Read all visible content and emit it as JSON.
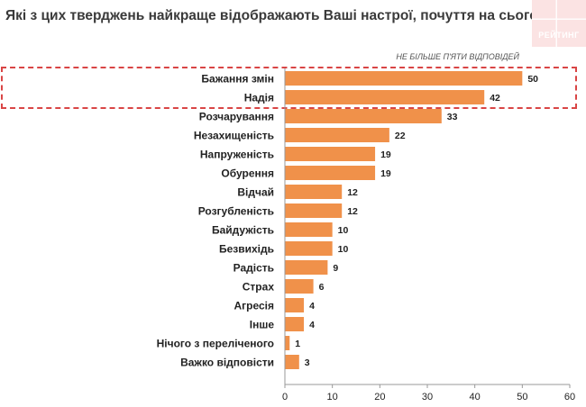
{
  "header": {
    "title": "Які з цих тверджень найкраще відображають Ваші настрої, почуття на сьогодні?",
    "logo_text": "РЕЙТИНГ",
    "note": "НЕ БІЛЬШЕ П'ЯТИ ВІДПОВІДЕЙ"
  },
  "colors": {
    "bar": "#f0914a",
    "highlight_border": "#d94545",
    "axis": "#999999",
    "text": "#222222"
  },
  "chart_data": {
    "type": "bar",
    "orientation": "horizontal",
    "categories": [
      "Бажання змін",
      "Надія",
      "Розчарування",
      "Незахищеність",
      "Напруженість",
      "Обурення",
      "Відчай",
      "Розгубленість",
      "Байдужість",
      "Безвихідь",
      "Радість",
      "Страх",
      "Агресія",
      "Інше",
      "Нічого з переліченого",
      "Важко відповісти"
    ],
    "values": [
      50,
      42,
      33,
      22,
      19,
      19,
      12,
      12,
      10,
      10,
      9,
      6,
      4,
      4,
      1,
      3
    ],
    "xlim": [
      0,
      60
    ],
    "xticks": [
      0,
      10,
      20,
      30,
      40,
      50,
      60
    ],
    "highlighted_categories": [
      "Бажання змін",
      "Надія"
    ],
    "grid": false,
    "legend": "none"
  }
}
